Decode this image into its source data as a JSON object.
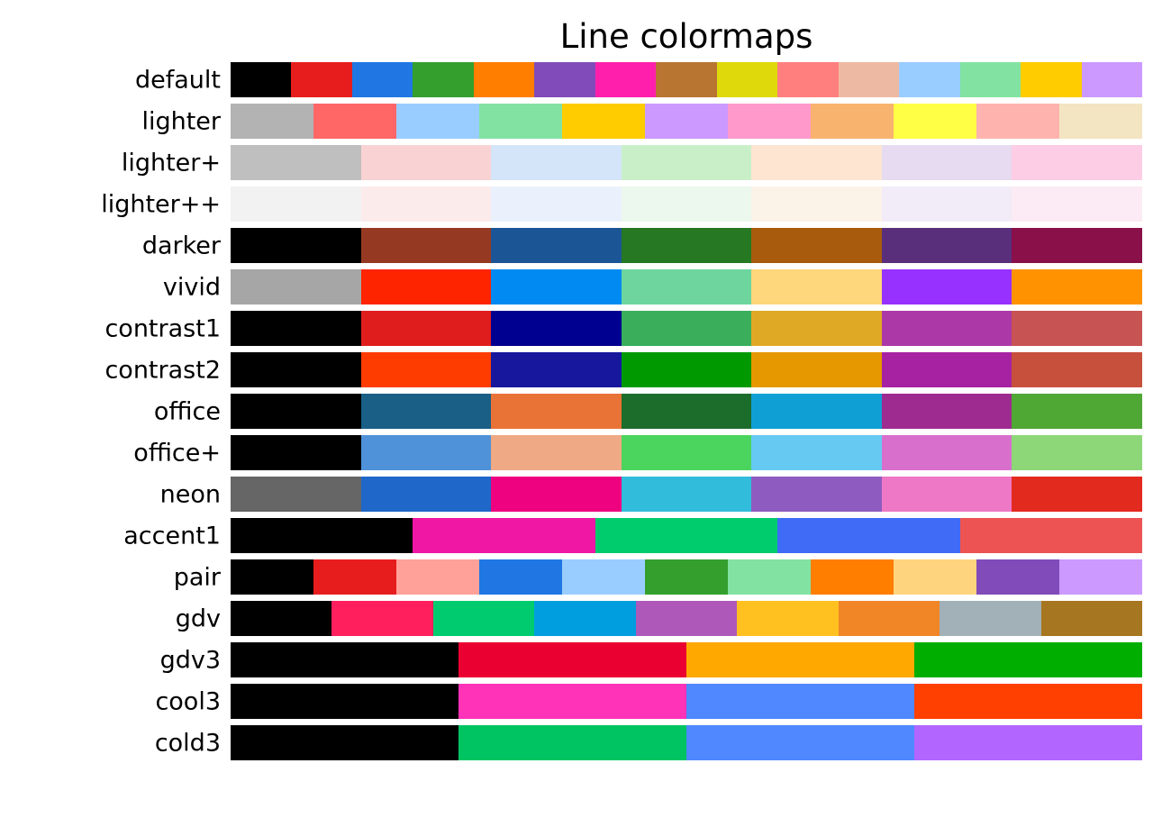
{
  "chart_data": {
    "type": "heatmap",
    "title": "Line colormaps",
    "grid": false,
    "legend": false,
    "colormaps": [
      {
        "name": "default",
        "colors": [
          "#000000",
          "#e71d1d",
          "#2077e3",
          "#349f2d",
          "#ff7e00",
          "#814bba",
          "#ff1fac",
          "#b87431",
          "#dfd90b",
          "#ff7f7e",
          "#eeb9a2",
          "#9acdff",
          "#82e2a2",
          "#ffcc00",
          "#cb99ff"
        ]
      },
      {
        "name": "lighter",
        "colors": [
          "#b3b3b3",
          "#ff6767",
          "#9acdff",
          "#82e2a2",
          "#ffcc00",
          "#cb99ff",
          "#ff99cc",
          "#f8b36f",
          "#ffff46",
          "#ffb3ae",
          "#f3e5c1"
        ]
      },
      {
        "name": "lighter+",
        "colors": [
          "#bfbfbf",
          "#f9d3d3",
          "#d4e4f9",
          "#c9efc8",
          "#fde5d2",
          "#e6dbf0",
          "#fdcde5"
        ]
      },
      {
        "name": "lighter++",
        "colors": [
          "#f2f2f2",
          "#fcebeb",
          "#ebf1fc",
          "#ecf8ed",
          "#fcf3e8",
          "#f1ecf7",
          "#fcebf4"
        ]
      },
      {
        "name": "darker",
        "colors": [
          "#000000",
          "#963922",
          "#1c5596",
          "#267822",
          "#a85b0c",
          "#592f7c",
          "#8a104a"
        ]
      },
      {
        "name": "vivid",
        "colors": [
          "#a6a6a6",
          "#ff2400",
          "#018af2",
          "#6ed59e",
          "#fed67b",
          "#9631ff",
          "#ff9200"
        ]
      },
      {
        "name": "contrast1",
        "colors": [
          "#000000",
          "#df1d1d",
          "#000090",
          "#3aae5b",
          "#e0a925",
          "#ac38a7",
          "#c85353"
        ]
      },
      {
        "name": "contrast2",
        "colors": [
          "#000000",
          "#ff3c00",
          "#17179e",
          "#009a00",
          "#e69800",
          "#a722a3",
          "#c7503c"
        ]
      },
      {
        "name": "office",
        "colors": [
          "#000000",
          "#195f86",
          "#e97236",
          "#1c6c2c",
          "#109fd5",
          "#9e2b8f",
          "#4fa734"
        ]
      },
      {
        "name": "office+",
        "colors": [
          "#000000",
          "#4f92d9",
          "#efa985",
          "#4bd45e",
          "#66c9f2",
          "#d86fcc",
          "#8ed778"
        ]
      },
      {
        "name": "neon",
        "colors": [
          "#666666",
          "#1f67c9",
          "#ef027f",
          "#32bcdb",
          "#8e5bc0",
          "#ee78c5",
          "#e32a1f"
        ]
      },
      {
        "name": "accent1",
        "colors": [
          "#000000",
          "#ef17a3",
          "#00cc6d",
          "#3f6bf6",
          "#ec5352"
        ]
      },
      {
        "name": "pair",
        "colors": [
          "#000000",
          "#e71d1d",
          "#ffa198",
          "#2077e3",
          "#9acdff",
          "#349f2d",
          "#82e2a2",
          "#ff7e00",
          "#ffd47f",
          "#814bba",
          "#cb99ff"
        ]
      },
      {
        "name": "gdv",
        "colors": [
          "#000000",
          "#ff1f5d",
          "#00cc6f",
          "#009ede",
          "#ae59ba",
          "#ffc120",
          "#f18626",
          "#a2b0b8",
          "#a77620"
        ]
      },
      {
        "name": "gdv3",
        "colors": [
          "#000000",
          "#ea0031",
          "#ffa800",
          "#00ae00"
        ]
      },
      {
        "name": "cool3",
        "colors": [
          "#000000",
          "#ff33b8",
          "#4f88ff",
          "#ff4000"
        ]
      },
      {
        "name": "cold3",
        "colors": [
          "#000000",
          "#00c461",
          "#4f88ff",
          "#b266ff"
        ]
      }
    ]
  }
}
